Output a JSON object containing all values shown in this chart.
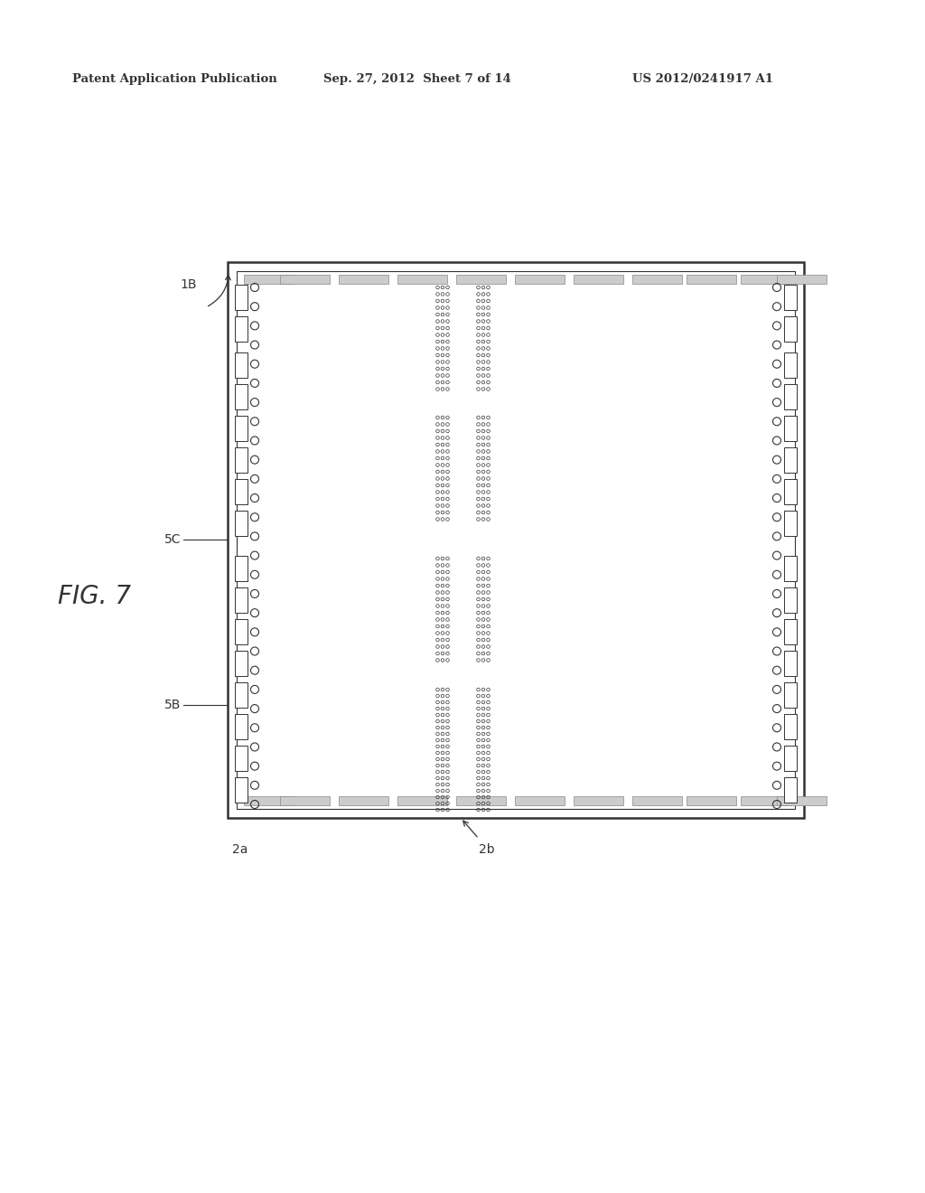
{
  "header_left": "Patent Application Publication",
  "header_mid": "Sep. 27, 2012  Sheet 7 of 14",
  "header_right": "US 2012/0241917 A1",
  "fig_label": "FIG. 7",
  "label_1B": "1B",
  "label_5C": "5C",
  "label_5B": "5B",
  "label_2a": "2a",
  "label_2b": "2b",
  "bg_color": "#ffffff",
  "line_color": "#333333",
  "text_color": "#333333"
}
